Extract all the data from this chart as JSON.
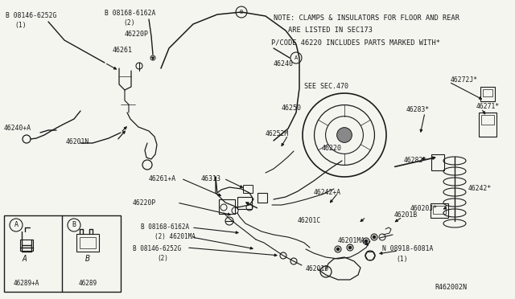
{
  "bg_color": "#f5f5f0",
  "line_color": "#1a1a1a",
  "note1": "NOTE: CLAMPS & INSULATORS FOR FLOOR AND REAR",
  "note2": "ARE LISTED IN SEC173",
  "note3": "P/CODE 46220 INCLUDES PARTS MARKED WITH*",
  "see_sec": "SEE SEC.470",
  "ref_code": "R462002N",
  "figsize": [
    6.4,
    3.72
  ],
  "dpi": 100
}
